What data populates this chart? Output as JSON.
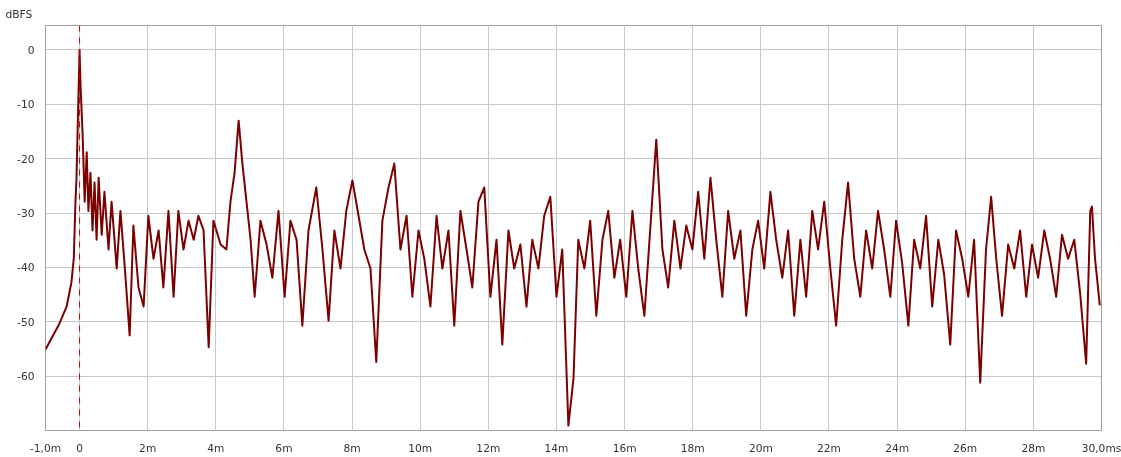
{
  "chart_data": {
    "type": "line",
    "ylabel": "dBFS",
    "x": [
      -1.0,
      -0.62,
      -0.38,
      -0.24,
      -0.17,
      -0.12,
      -0.09,
      0,
      0.03,
      0.09,
      0.15,
      0.21,
      0.26,
      0.32,
      0.38,
      0.44,
      0.5,
      0.56,
      0.65,
      0.73,
      0.85,
      0.94,
      1.09,
      1.2,
      1.35,
      1.47,
      1.58,
      1.73,
      1.88,
      2.02,
      2.17,
      2.32,
      2.46,
      2.61,
      2.76,
      2.9,
      3.05,
      3.2,
      3.35,
      3.49,
      3.64,
      3.79,
      3.93,
      4.14,
      4.31,
      4.43,
      4.55,
      4.67,
      4.78,
      4.9,
      5.02,
      5.14,
      5.31,
      5.49,
      5.66,
      5.84,
      6.02,
      6.19,
      6.37,
      6.54,
      6.72,
      6.95,
      7.13,
      7.31,
      7.48,
      7.66,
      7.83,
      8.01,
      8.19,
      8.36,
      8.54,
      8.71,
      8.89,
      9.07,
      9.24,
      9.42,
      9.6,
      9.77,
      9.95,
      10.12,
      10.3,
      10.48,
      10.65,
      10.83,
      11.0,
      11.18,
      11.36,
      11.53,
      11.71,
      11.88,
      12.06,
      12.24,
      12.41,
      12.59,
      12.76,
      12.94,
      13.12,
      13.29,
      13.47,
      13.64,
      13.82,
      14.0,
      14.17,
      14.35,
      14.5,
      14.64,
      14.82,
      14.99,
      15.17,
      15.35,
      15.52,
      15.7,
      15.87,
      16.05,
      16.23,
      16.4,
      16.58,
      16.75,
      16.93,
      17.11,
      17.28,
      17.46,
      17.64,
      17.81,
      17.99,
      18.16,
      18.34,
      18.52,
      18.69,
      18.87,
      19.04,
      19.22,
      19.4,
      19.57,
      19.75,
      19.92,
      20.1,
      20.28,
      20.45,
      20.63,
      20.8,
      20.98,
      21.16,
      21.33,
      21.51,
      21.68,
      21.86,
      22.04,
      22.21,
      22.39,
      22.56,
      22.74,
      22.92,
      23.09,
      23.27,
      23.44,
      23.62,
      23.8,
      23.97,
      24.15,
      24.33,
      24.5,
      24.68,
      24.85,
      25.03,
      25.21,
      25.38,
      25.56,
      25.73,
      25.91,
      26.09,
      26.26,
      26.44,
      26.61,
      26.76,
      26.91,
      27.08,
      27.26,
      27.44,
      27.61,
      27.79,
      27.96,
      28.14,
      28.32,
      28.49,
      28.67,
      28.84,
      29.02,
      29.2,
      29.37,
      29.55,
      29.67,
      29.72,
      29.81,
      29.95
    ],
    "series": [
      {
        "color": "#7b0000",
        "values": [
          -55.1,
          -50.7,
          -47.2,
          -42.8,
          -38.4,
          -27.9,
          -23.5,
          0,
          -6.8,
          -15.6,
          -27.9,
          -18.8,
          -29.6,
          -22.6,
          -33.2,
          -24.4,
          -34.9,
          -23.5,
          -34,
          -26.1,
          -36.7,
          -27.9,
          -40.2,
          -29.6,
          -41.9,
          -52.5,
          -32.3,
          -43.7,
          -47.2,
          -30.5,
          -38.4,
          -33.2,
          -43.7,
          -29.6,
          -45.4,
          -29.6,
          -36.7,
          -31.4,
          -34.9,
          -30.5,
          -33.2,
          -54.7,
          -31.4,
          -35.8,
          -36.7,
          -27.9,
          -22.6,
          -13,
          -20.9,
          -27.9,
          -34.9,
          -45.4,
          -31.4,
          -35.8,
          -41.9,
          -29.6,
          -45.4,
          -31.4,
          -34.9,
          -50.7,
          -33.2,
          -25.3,
          -36.7,
          -49.8,
          -33.2,
          -40.2,
          -29.6,
          -24,
          -30.5,
          -36.7,
          -40.2,
          -57.4,
          -31.4,
          -25.3,
          -20.9,
          -36.7,
          -30.5,
          -45.4,
          -33.2,
          -38.4,
          -47.2,
          -30.5,
          -40.2,
          -33.2,
          -50.7,
          -29.6,
          -36.7,
          -43.7,
          -27.9,
          -25.3,
          -45.4,
          -34.9,
          -54.2,
          -33.2,
          -40.2,
          -35.8,
          -47.2,
          -34.9,
          -40.2,
          -30.5,
          -27,
          -45.4,
          -36.7,
          -69.1,
          -60.4,
          -34.9,
          -40.2,
          -31.4,
          -48.9,
          -34.9,
          -29.6,
          -41.9,
          -34.9,
          -45.4,
          -29.6,
          -40.2,
          -48.9,
          -33.2,
          -16.5,
          -36.7,
          -43.7,
          -31.4,
          -40.2,
          -32.3,
          -36.7,
          -26.1,
          -38.4,
          -23.5,
          -34.9,
          -45.4,
          -29.6,
          -38.4,
          -33.2,
          -48.9,
          -36.7,
          -31.4,
          -40.2,
          -26.1,
          -34.9,
          -41.9,
          -33.2,
          -48.9,
          -34.9,
          -45.4,
          -29.6,
          -36.7,
          -27.9,
          -40.2,
          -50.7,
          -34.9,
          -24.4,
          -38.4,
          -45.4,
          -33.2,
          -40.2,
          -29.6,
          -36.7,
          -45.4,
          -31.4,
          -39.3,
          -50.7,
          -34.9,
          -40.2,
          -30.5,
          -47.2,
          -34.9,
          -41.3,
          -54.2,
          -33.2,
          -38.4,
          -45.4,
          -34.9,
          -61.2,
          -36.7,
          -27,
          -38.4,
          -48.9,
          -35.8,
          -40.2,
          -33.2,
          -45.4,
          -35.8,
          -41.9,
          -33.2,
          -38.4,
          -45.4,
          -34,
          -38.4,
          -34.9,
          -44.6,
          -57.7,
          -29.6,
          -28.8,
          -38.4,
          -47
        ]
      }
    ],
    "xlim": [
      -1,
      30
    ],
    "ylim": [
      -70,
      4.5
    ],
    "xticks": [
      {
        "value": -1,
        "label": "-1,0m"
      },
      0,
      {
        "value": 2,
        "label": "2m"
      },
      {
        "value": 4,
        "label": "4m"
      },
      {
        "value": 6,
        "label": "6m"
      },
      {
        "value": 8,
        "label": "8m"
      },
      {
        "value": 10,
        "label": "10m"
      },
      {
        "value": 12,
        "label": "12m"
      },
      {
        "value": 14,
        "label": "14m"
      },
      {
        "value": 16,
        "label": "16m"
      },
      {
        "value": 18,
        "label": "18m"
      },
      {
        "value": 20,
        "label": "20m"
      },
      {
        "value": 22,
        "label": "22m"
      },
      {
        "value": 24,
        "label": "24m"
      },
      {
        "value": 26,
        "label": "26m"
      },
      {
        "value": 28,
        "label": "28m"
      },
      {
        "value": 30,
        "label": "30,0ms"
      }
    ],
    "yticks": [
      0,
      -10,
      -20,
      -30,
      -40,
      -50,
      -60
    ],
    "ref_lines": [
      {
        "axis": "x",
        "value": 0,
        "color": "#c00000",
        "line_style": "dashed"
      }
    ],
    "grid": true,
    "line_style": "solid",
    "marker": "none"
  }
}
